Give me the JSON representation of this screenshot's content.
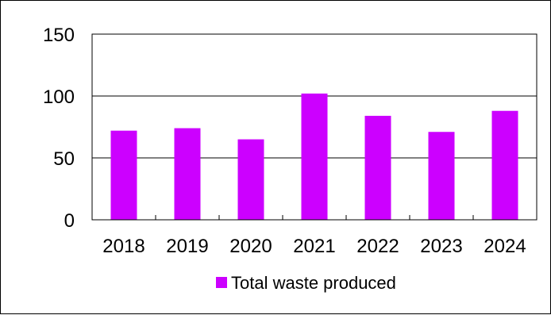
{
  "chart_data": {
    "type": "bar",
    "categories": [
      "2018",
      "2019",
      "2020",
      "2021",
      "2022",
      "2023",
      "2024"
    ],
    "series": [
      {
        "name": "Total waste produced",
        "values": [
          72,
          74,
          65,
          102,
          84,
          71,
          88
        ],
        "color": "#cc00ff"
      }
    ],
    "ylim": [
      0,
      150
    ],
    "yticks": [
      0,
      50,
      100,
      150
    ],
    "title": "",
    "xlabel": "",
    "ylabel": "",
    "grid": true,
    "legend_position": "bottom"
  }
}
